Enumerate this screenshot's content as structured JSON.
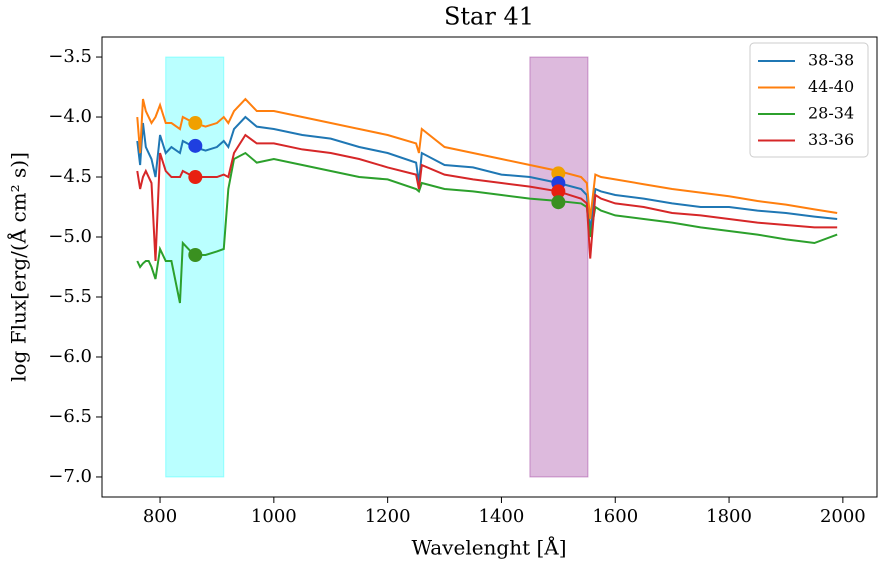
{
  "chart_data": {
    "type": "line",
    "title": "Star 41",
    "xlabel": "Wavelenght [Å]",
    "ylabel": "log Flux[erg/(Å cm² s)]",
    "x": [
      760,
      765,
      770,
      775,
      780,
      785,
      792,
      800,
      810,
      820,
      835,
      840,
      860,
      880,
      900,
      912,
      920,
      930,
      950,
      970,
      1000,
      1050,
      1100,
      1150,
      1200,
      1250,
      1255,
      1260,
      1300,
      1350,
      1400,
      1450,
      1500,
      1540,
      1550,
      1556,
      1565,
      1575,
      1600,
      1650,
      1700,
      1750,
      1800,
      1850,
      1900,
      1950,
      1990
    ],
    "series": [
      {
        "name": "38-38",
        "color": "#1f77b4",
        "values": [
          -4.2,
          -4.4,
          -4.05,
          -4.25,
          -4.3,
          -4.35,
          -4.5,
          -4.15,
          -4.3,
          -4.25,
          -4.3,
          -4.2,
          -4.25,
          -4.28,
          -4.25,
          -4.2,
          -4.25,
          -4.1,
          -4.0,
          -4.08,
          -4.1,
          -4.15,
          -4.18,
          -4.25,
          -4.3,
          -4.38,
          -4.55,
          -4.3,
          -4.4,
          -4.42,
          -4.48,
          -4.5,
          -4.55,
          -4.6,
          -4.65,
          -4.95,
          -4.6,
          -4.62,
          -4.65,
          -4.68,
          -4.72,
          -4.75,
          -4.75,
          -4.78,
          -4.8,
          -4.83,
          -4.85
        ]
      },
      {
        "name": "44-40",
        "color": "#ff7f0e",
        "values": [
          -4.0,
          -4.3,
          -3.85,
          -3.95,
          -4.0,
          -4.05,
          -4.0,
          -3.9,
          -4.05,
          -4.05,
          -4.1,
          -4.0,
          -4.05,
          -4.08,
          -4.05,
          -4.0,
          -4.05,
          -3.95,
          -3.85,
          -3.95,
          -3.95,
          -4.0,
          -4.05,
          -4.1,
          -4.15,
          -4.22,
          -4.3,
          -4.1,
          -4.25,
          -4.3,
          -4.35,
          -4.4,
          -4.45,
          -4.5,
          -4.55,
          -4.85,
          -4.48,
          -4.5,
          -4.52,
          -4.56,
          -4.6,
          -4.63,
          -4.66,
          -4.7,
          -4.73,
          -4.77,
          -4.8
        ]
      },
      {
        "name": "28-34",
        "color": "#2ca02c",
        "values": [
          -5.2,
          -5.25,
          -5.22,
          -5.2,
          -5.2,
          -5.25,
          -5.35,
          -5.1,
          -5.2,
          -5.2,
          -5.55,
          -5.05,
          -5.15,
          -5.15,
          -5.12,
          -5.1,
          -4.6,
          -4.35,
          -4.3,
          -4.38,
          -4.35,
          -4.4,
          -4.45,
          -4.5,
          -4.52,
          -4.6,
          -4.62,
          -4.55,
          -4.6,
          -4.62,
          -4.65,
          -4.68,
          -4.7,
          -4.72,
          -4.75,
          -5.0,
          -4.75,
          -4.78,
          -4.82,
          -4.85,
          -4.88,
          -4.92,
          -4.95,
          -4.98,
          -5.02,
          -5.05,
          -4.98
        ]
      },
      {
        "name": "33-36",
        "color": "#d62728",
        "values": [
          -4.45,
          -4.6,
          -4.5,
          -4.45,
          -4.5,
          -4.55,
          -5.2,
          -4.3,
          -4.45,
          -4.5,
          -4.5,
          -4.45,
          -4.5,
          -4.5,
          -4.5,
          -4.48,
          -4.5,
          -4.3,
          -4.15,
          -4.22,
          -4.22,
          -4.27,
          -4.3,
          -4.35,
          -4.42,
          -4.48,
          -4.6,
          -4.4,
          -4.48,
          -4.52,
          -4.55,
          -4.58,
          -4.62,
          -4.68,
          -4.72,
          -5.18,
          -4.65,
          -4.68,
          -4.72,
          -4.75,
          -4.8,
          -4.82,
          -4.85,
          -4.88,
          -4.9,
          -4.92,
          -4.92
        ]
      }
    ],
    "markers": [
      {
        "x": 862,
        "y": -4.05,
        "color": "#f0a000"
      },
      {
        "x": 862,
        "y": -4.24,
        "color": "#1f3fe0"
      },
      {
        "x": 862,
        "y": -4.5,
        "color": "#e82010"
      },
      {
        "x": 862,
        "y": -5.15,
        "color": "#3a9020"
      },
      {
        "x": 1500,
        "y": -4.47,
        "color": "#f0a000"
      },
      {
        "x": 1500,
        "y": -4.55,
        "color": "#1f3fe0"
      },
      {
        "x": 1500,
        "y": -4.62,
        "color": "#e82010"
      },
      {
        "x": 1500,
        "y": -4.71,
        "color": "#3a9020"
      }
    ],
    "spans": [
      {
        "x": [
          810,
          912
        ],
        "y": [
          -7.0,
          -3.5
        ],
        "color": "#00ffff"
      },
      {
        "x": [
          1450,
          1552
        ],
        "y": [
          -7.0,
          -3.5
        ],
        "color": "#800080"
      }
    ],
    "xlim": [
      698,
      2060
    ],
    "ylim": [
      -7.167,
      -3.333
    ],
    "xticks": [
      800,
      1000,
      1200,
      1400,
      1600,
      1800,
      2000
    ],
    "yticks": [
      {
        "value": -7.0,
        "label": "−7.0"
      },
      {
        "value": -6.5,
        "label": "−6.5"
      },
      {
        "value": -6.0,
        "label": "−6.0"
      },
      {
        "value": -5.5,
        "label": "−5.5"
      },
      {
        "value": -5.0,
        "label": "−5.0"
      },
      {
        "value": -4.5,
        "label": "−4.5"
      },
      {
        "value": -4.0,
        "label": "−4.0"
      },
      {
        "value": -3.5,
        "label": "−3.5"
      }
    ],
    "legend": "upper right"
  }
}
